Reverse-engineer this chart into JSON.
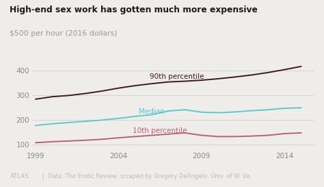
{
  "title": "High-end sex work has gotten much more expensive",
  "subtitle": "$500 per hour (2016 dollars)",
  "footer_left": "ATLAS",
  "footer_right": "Data: The Erotic Review, scraped by Gregory DeAngelo, Univ. of W. Va.",
  "years": [
    1999,
    2000,
    2001,
    2002,
    2003,
    2004,
    2005,
    2006,
    2007,
    2008,
    2009,
    2010,
    2011,
    2012,
    2013,
    2014,
    2015
  ],
  "p90": [
    285,
    295,
    300,
    308,
    318,
    330,
    340,
    348,
    355,
    358,
    362,
    368,
    375,
    383,
    393,
    405,
    418
  ],
  "median": [
    178,
    185,
    190,
    195,
    200,
    207,
    215,
    222,
    237,
    242,
    232,
    230,
    233,
    238,
    242,
    248,
    250
  ],
  "p10": [
    108,
    112,
    115,
    118,
    122,
    128,
    133,
    138,
    143,
    148,
    138,
    133,
    133,
    135,
    138,
    145,
    148
  ],
  "p90_color": "#3d1a24",
  "median_color": "#5bc8d0",
  "p10_color": "#b8607a",
  "bg_color": "#efede9",
  "grid_color": "#d8d4cc",
  "title_color": "#1a1a1a",
  "subtitle_color": "#999999",
  "footer_color": "#bbbbbb",
  "label_90": "90th percentile",
  "label_median": "Median",
  "label_10": "10th percentile",
  "ylim": [
    80,
    460
  ],
  "yticks": [
    100,
    200,
    300,
    400
  ],
  "xticks": [
    1999,
    2004,
    2009,
    2014
  ]
}
